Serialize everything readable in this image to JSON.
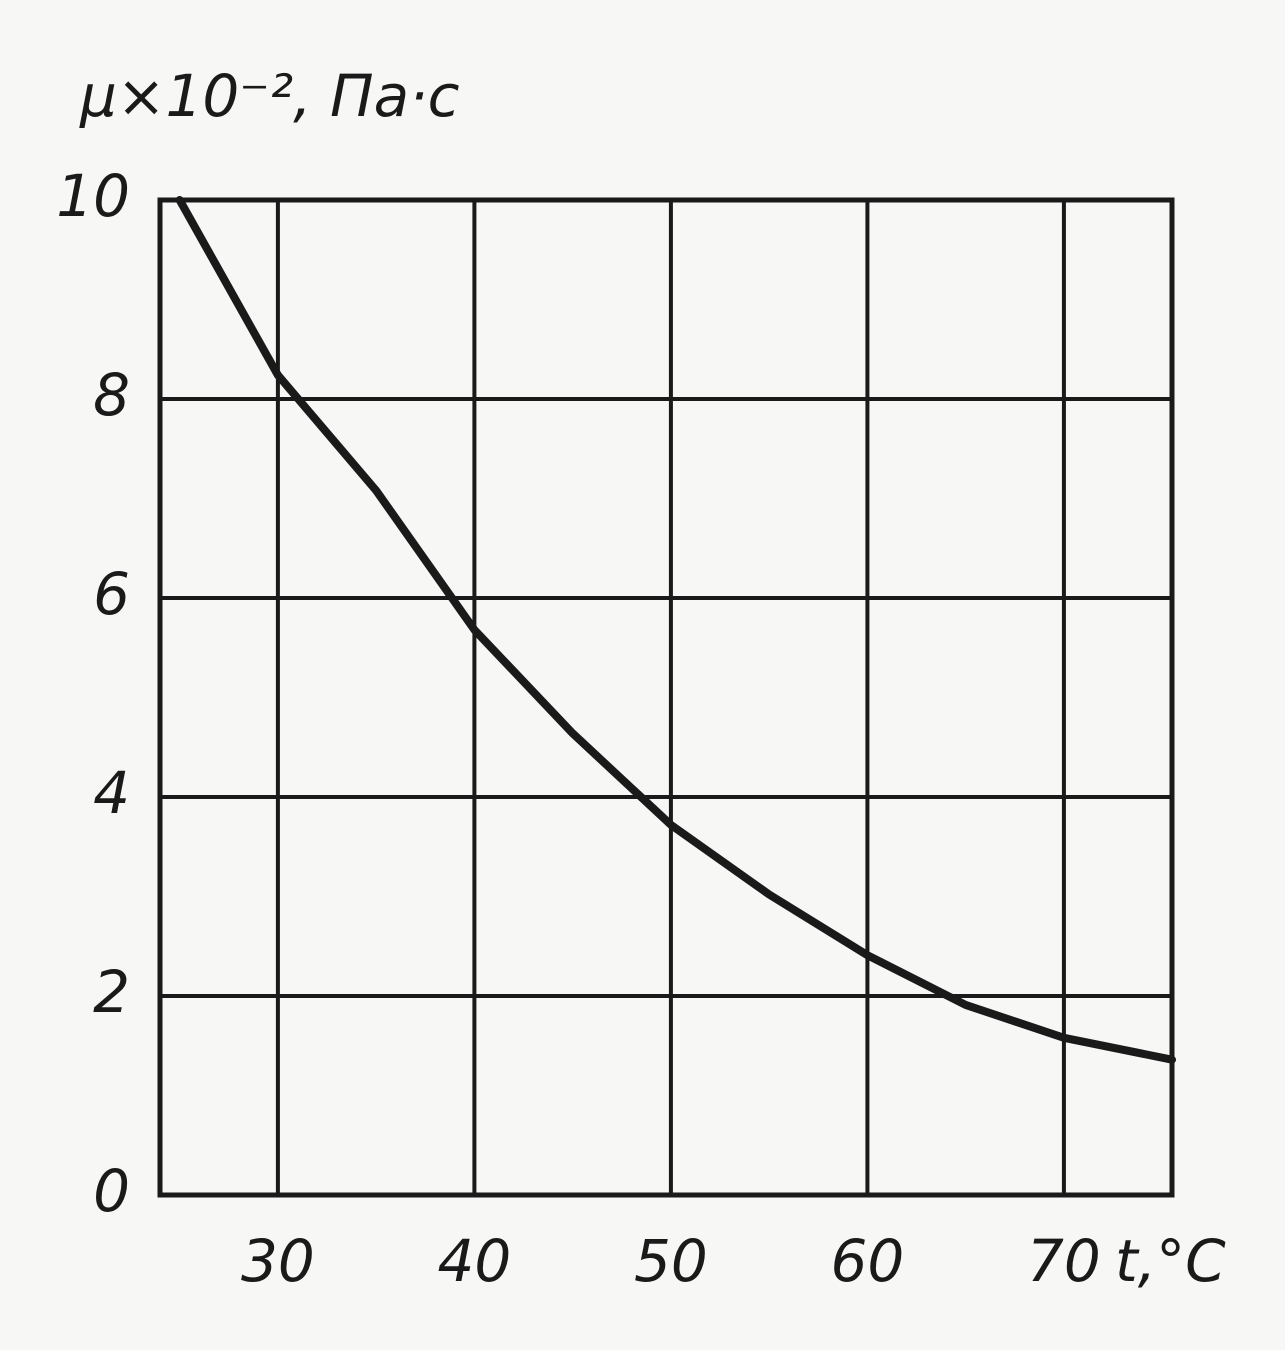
{
  "chart_data": {
    "type": "line",
    "ylabel": "μ×10⁻², Па·с",
    "xlabel": "t,°C",
    "x": [
      25,
      30,
      35,
      40,
      45,
      50,
      55,
      60,
      65,
      70,
      75.5
    ],
    "series": [
      {
        "color": "#1a1a1a",
        "values": [
          10,
          8.24,
          7.08,
          5.68,
          4.64,
          3.72,
          3.02,
          2.41,
          1.91,
          1.58,
          1.36
        ]
      }
    ],
    "xlim": [
      24,
      75.5
    ],
    "xticks": [
      30,
      40,
      50,
      60,
      70
    ],
    "ylim": [
      0,
      10
    ],
    "yticks": [
      0,
      2,
      4,
      6,
      8,
      10
    ],
    "grid": true
  }
}
